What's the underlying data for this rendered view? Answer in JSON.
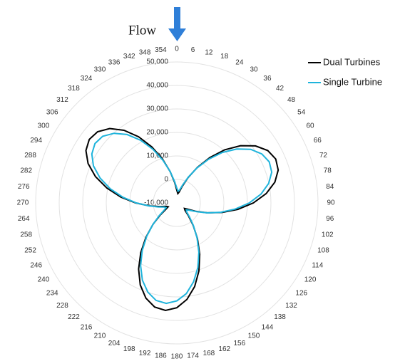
{
  "chart_data": {
    "type": "radar",
    "annotation": "Flow",
    "categories": [
      "0",
      "6",
      "12",
      "18",
      "24",
      "30",
      "36",
      "42",
      "48",
      "54",
      "60",
      "66",
      "72",
      "78",
      "84",
      "90",
      "96",
      "102",
      "108",
      "114",
      "120",
      "126",
      "132",
      "138",
      "144",
      "150",
      "156",
      "162",
      "168",
      "174",
      "180",
      "186",
      "192",
      "198",
      "204",
      "210",
      "216",
      "222",
      "228",
      "234",
      "240",
      "246",
      "252",
      "258",
      "264",
      "270",
      "276",
      "282",
      "288",
      "294",
      "300",
      "306",
      "312",
      "318",
      "324",
      "330",
      "336",
      "342",
      "348",
      "354"
    ],
    "series": [
      {
        "name": "Dual Turbines",
        "color": "#000000",
        "values": [
          -4600,
          -6000,
          -5300,
          -2600,
          1800,
          7500,
          13900,
          20400,
          26400,
          31300,
          34600,
          36000,
          35300,
          32600,
          28200,
          22500,
          16100,
          9600,
          3600,
          -1300,
          -4600,
          -6000,
          -5300,
          -2600,
          1800,
          7500,
          13900,
          20400,
          26400,
          31300,
          34600,
          36000,
          35300,
          32600,
          28200,
          22500,
          16100,
          9600,
          3600,
          -1300,
          -4600,
          -6000,
          -5300,
          -2600,
          1800,
          7500,
          13900,
          20400,
          26400,
          31300,
          34600,
          36000,
          35300,
          32600,
          28200,
          22500,
          16100,
          9600,
          3600,
          -1300
        ]
      },
      {
        "name": "Single Turbine",
        "color": "#1fb4dc",
        "values": [
          -3700,
          -5000,
          -4400,
          -1900,
          2000,
          7200,
          13000,
          18900,
          24300,
          28800,
          31700,
          33000,
          32400,
          29900,
          26000,
          20800,
          15000,
          9100,
          3700,
          -800,
          -3700,
          -5000,
          -4400,
          -1900,
          2000,
          7200,
          13000,
          18900,
          24300,
          28800,
          31700,
          33000,
          32400,
          29900,
          26000,
          20800,
          15000,
          9100,
          3700,
          -800,
          -3700,
          -5000,
          -4400,
          -1900,
          2000,
          7200,
          13000,
          18900,
          24300,
          28800,
          31700,
          33000,
          32400,
          29900,
          26000,
          20800,
          15000,
          9100,
          3700,
          -800
        ]
      }
    ],
    "ylim": [
      -10000,
      50000
    ],
    "yticks": [
      {
        "value": -10000,
        "label": "-10,000"
      },
      0,
      {
        "value": 10000,
        "label": "10,000"
      },
      {
        "value": 20000,
        "label": "20,000"
      },
      {
        "value": 30000,
        "label": "30,000"
      },
      {
        "value": 40000,
        "label": "40,000"
      },
      {
        "value": 50000,
        "label": "50,000"
      }
    ],
    "grid": true,
    "legend": "upper right"
  }
}
